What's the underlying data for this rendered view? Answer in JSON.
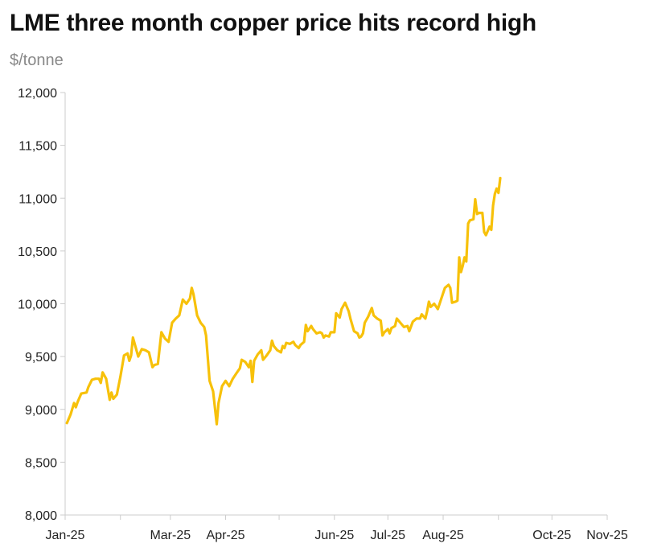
{
  "chart_data": {
    "type": "line",
    "title": "LME three month copper price hits record high",
    "ylabel": "$/tonne",
    "xlabel": "",
    "ylim": [
      8000,
      12000
    ],
    "yticks": [
      "8,000",
      "8,500",
      "9,000",
      "9,500",
      "10,000",
      "10,500",
      "11,000",
      "11,500",
      "12,000"
    ],
    "ytick_values": [
      8000,
      8500,
      9000,
      9500,
      10000,
      10500,
      11000,
      11500,
      12000
    ],
    "xlim": [
      "2025-01-01",
      "2025-11-01"
    ],
    "xticks": [
      {
        "date": "2025-01-01",
        "label": "Jan-25"
      },
      {
        "date": "2025-02-01",
        "label": ""
      },
      {
        "date": "2025-03-01",
        "label": "Mar-25"
      },
      {
        "date": "2025-04-01",
        "label": "Apr-25"
      },
      {
        "date": "2025-05-01",
        "label": ""
      },
      {
        "date": "2025-06-01",
        "label": "Jun-25"
      },
      {
        "date": "2025-07-01",
        "label": "Jul-25"
      },
      {
        "date": "2025-08-01",
        "label": "Aug-25"
      },
      {
        "date": "2025-09-01",
        "label": ""
      },
      {
        "date": "2025-10-01",
        "label": "Oct-25"
      },
      {
        "date": "2025-11-01",
        "label": "Nov-25"
      }
    ],
    "grid": false,
    "legend": "none",
    "series": [
      {
        "color": "#F7C10A",
        "points": [
          [
            "2025-01-02",
            8870
          ],
          [
            "2025-01-04",
            8950
          ],
          [
            "2025-01-06",
            9060
          ],
          [
            "2025-01-07",
            9020
          ],
          [
            "2025-01-08",
            9070
          ],
          [
            "2025-01-10",
            9150
          ],
          [
            "2025-01-13",
            9160
          ],
          [
            "2025-01-14",
            9210
          ],
          [
            "2025-01-16",
            9280
          ],
          [
            "2025-01-18",
            9290
          ],
          [
            "2025-01-20",
            9290
          ],
          [
            "2025-01-21",
            9250
          ],
          [
            "2025-01-22",
            9350
          ],
          [
            "2025-01-24",
            9290
          ],
          [
            "2025-01-26",
            9090
          ],
          [
            "2025-01-27",
            9160
          ],
          [
            "2025-01-28",
            9100
          ],
          [
            "2025-01-30",
            9140
          ],
          [
            "2025-02-01",
            9310
          ],
          [
            "2025-02-03",
            9510
          ],
          [
            "2025-02-05",
            9530
          ],
          [
            "2025-02-06",
            9460
          ],
          [
            "2025-02-07",
            9510
          ],
          [
            "2025-02-08",
            9680
          ],
          [
            "2025-02-10",
            9560
          ],
          [
            "2025-02-11",
            9500
          ],
          [
            "2025-02-13",
            9570
          ],
          [
            "2025-02-15",
            9560
          ],
          [
            "2025-02-17",
            9540
          ],
          [
            "2025-02-19",
            9400
          ],
          [
            "2025-02-20",
            9420
          ],
          [
            "2025-02-22",
            9430
          ],
          [
            "2025-02-24",
            9730
          ],
          [
            "2025-02-26",
            9670
          ],
          [
            "2025-02-28",
            9640
          ],
          [
            "2025-03-02",
            9820
          ],
          [
            "2025-03-04",
            9860
          ],
          [
            "2025-03-06",
            9890
          ],
          [
            "2025-03-08",
            10040
          ],
          [
            "2025-03-10",
            10000
          ],
          [
            "2025-03-12",
            10050
          ],
          [
            "2025-03-13",
            10150
          ],
          [
            "2025-03-14",
            10090
          ],
          [
            "2025-03-16",
            9890
          ],
          [
            "2025-03-18",
            9820
          ],
          [
            "2025-03-20",
            9780
          ],
          [
            "2025-03-21",
            9700
          ],
          [
            "2025-03-23",
            9270
          ],
          [
            "2025-03-25",
            9170
          ],
          [
            "2025-03-27",
            8860
          ],
          [
            "2025-03-28",
            9060
          ],
          [
            "2025-03-30",
            9220
          ],
          [
            "2025-04-01",
            9270
          ],
          [
            "2025-04-03",
            9220
          ],
          [
            "2025-04-05",
            9290
          ],
          [
            "2025-04-07",
            9340
          ],
          [
            "2025-04-09",
            9390
          ],
          [
            "2025-04-10",
            9470
          ],
          [
            "2025-04-12",
            9450
          ],
          [
            "2025-04-14",
            9400
          ],
          [
            "2025-04-15",
            9460
          ],
          [
            "2025-04-16",
            9260
          ],
          [
            "2025-04-17",
            9460
          ],
          [
            "2025-04-19",
            9520
          ],
          [
            "2025-04-21",
            9560
          ],
          [
            "2025-04-22",
            9470
          ],
          [
            "2025-04-24",
            9510
          ],
          [
            "2025-04-26",
            9560
          ],
          [
            "2025-04-27",
            9650
          ],
          [
            "2025-04-28",
            9600
          ],
          [
            "2025-04-30",
            9560
          ],
          [
            "2025-05-02",
            9540
          ],
          [
            "2025-05-03",
            9600
          ],
          [
            "2025-05-04",
            9580
          ],
          [
            "2025-05-05",
            9630
          ],
          [
            "2025-05-07",
            9620
          ],
          [
            "2025-05-09",
            9640
          ],
          [
            "2025-05-10",
            9610
          ],
          [
            "2025-05-12",
            9580
          ],
          [
            "2025-05-13",
            9610
          ],
          [
            "2025-05-15",
            9640
          ],
          [
            "2025-05-16",
            9800
          ],
          [
            "2025-05-17",
            9740
          ],
          [
            "2025-05-19",
            9790
          ],
          [
            "2025-05-20",
            9760
          ],
          [
            "2025-05-22",
            9720
          ],
          [
            "2025-05-24",
            9730
          ],
          [
            "2025-05-25",
            9720
          ],
          [
            "2025-05-26",
            9680
          ],
          [
            "2025-05-27",
            9700
          ],
          [
            "2025-05-29",
            9690
          ],
          [
            "2025-05-30",
            9730
          ],
          [
            "2025-06-01",
            9730
          ],
          [
            "2025-06-02",
            9910
          ],
          [
            "2025-06-04",
            9870
          ],
          [
            "2025-06-05",
            9950
          ],
          [
            "2025-06-07",
            10010
          ],
          [
            "2025-06-09",
            9930
          ],
          [
            "2025-06-10",
            9860
          ],
          [
            "2025-06-12",
            9740
          ],
          [
            "2025-06-14",
            9720
          ],
          [
            "2025-06-15",
            9680
          ],
          [
            "2025-06-16",
            9690
          ],
          [
            "2025-06-17",
            9720
          ],
          [
            "2025-06-18",
            9820
          ],
          [
            "2025-06-20",
            9880
          ],
          [
            "2025-06-22",
            9960
          ],
          [
            "2025-06-23",
            9890
          ],
          [
            "2025-06-25",
            9860
          ],
          [
            "2025-06-27",
            9840
          ],
          [
            "2025-06-28",
            9700
          ],
          [
            "2025-06-29",
            9730
          ],
          [
            "2025-07-01",
            9760
          ],
          [
            "2025-07-02",
            9720
          ],
          [
            "2025-07-03",
            9770
          ],
          [
            "2025-07-05",
            9790
          ],
          [
            "2025-07-06",
            9860
          ],
          [
            "2025-07-08",
            9820
          ],
          [
            "2025-07-10",
            9780
          ],
          [
            "2025-07-12",
            9790
          ],
          [
            "2025-07-13",
            9740
          ],
          [
            "2025-07-15",
            9830
          ],
          [
            "2025-07-17",
            9860
          ],
          [
            "2025-07-19",
            9860
          ],
          [
            "2025-07-20",
            9900
          ],
          [
            "2025-07-22",
            9860
          ],
          [
            "2025-07-23",
            9930
          ],
          [
            "2025-07-24",
            10020
          ],
          [
            "2025-07-25",
            9970
          ],
          [
            "2025-07-27",
            10000
          ],
          [
            "2025-07-29",
            9950
          ],
          [
            "2025-07-31",
            10050
          ],
          [
            "2025-08-02",
            10150
          ],
          [
            "2025-08-04",
            10180
          ],
          [
            "2025-08-05",
            10150
          ],
          [
            "2025-08-06",
            10010
          ],
          [
            "2025-08-08",
            10020
          ],
          [
            "2025-08-09",
            10030
          ],
          [
            "2025-08-10",
            10440
          ],
          [
            "2025-08-11",
            10300
          ],
          [
            "2025-08-12",
            10360
          ],
          [
            "2025-08-13",
            10440
          ],
          [
            "2025-08-14",
            10400
          ],
          [
            "2025-08-15",
            10760
          ],
          [
            "2025-08-16",
            10790
          ],
          [
            "2025-08-18",
            10800
          ],
          [
            "2025-08-19",
            10990
          ],
          [
            "2025-08-20",
            10850
          ],
          [
            "2025-08-21",
            10860
          ],
          [
            "2025-08-23",
            10860
          ],
          [
            "2025-08-24",
            10680
          ],
          [
            "2025-08-25",
            10650
          ],
          [
            "2025-08-27",
            10730
          ],
          [
            "2025-08-28",
            10700
          ],
          [
            "2025-08-29",
            10930
          ],
          [
            "2025-08-30",
            11040
          ],
          [
            "2025-08-31",
            11090
          ],
          [
            "2025-09-01",
            11050
          ],
          [
            "2025-09-02",
            11190
          ]
        ]
      }
    ]
  }
}
